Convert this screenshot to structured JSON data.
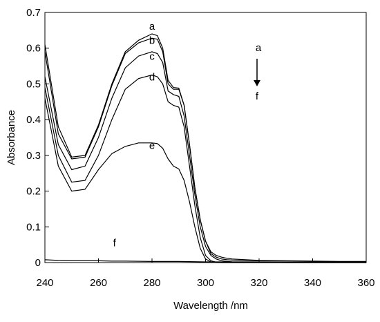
{
  "chart_data": {
    "type": "line",
    "title": "",
    "xlabel": "Wavelength /nm",
    "ylabel": "Absorbance",
    "xlim": [
      240,
      360
    ],
    "ylim": [
      0,
      0.7
    ],
    "xticks": [
      "240",
      "260",
      "280",
      "300",
      "320",
      "340",
      "360"
    ],
    "yticks": [
      "0",
      "0.1",
      "0.2",
      "0.3",
      "0.4",
      "0.5",
      "0.6",
      "0.7"
    ],
    "grid": false,
    "legend": "none",
    "annotation": {
      "from": "a",
      "to": "f"
    },
    "series": [
      {
        "name": "a",
        "x": [
          240,
          245,
          250,
          255,
          260,
          265,
          270,
          275,
          280,
          282,
          284,
          286,
          288,
          290,
          292,
          294,
          296,
          298,
          300,
          302,
          304,
          306,
          308,
          310,
          315,
          320,
          330,
          340,
          350,
          360
        ],
        "y": [
          0.61,
          0.38,
          0.295,
          0.3,
          0.385,
          0.5,
          0.59,
          0.622,
          0.64,
          0.635,
          0.6,
          0.51,
          0.49,
          0.488,
          0.44,
          0.33,
          0.21,
          0.12,
          0.06,
          0.03,
          0.02,
          0.015,
          0.012,
          0.01,
          0.008,
          0.006,
          0.005,
          0.004,
          0.003,
          0.003
        ]
      },
      {
        "name": "b",
        "x": [
          240,
          245,
          250,
          255,
          260,
          265,
          270,
          275,
          280,
          282,
          284,
          286,
          288,
          290,
          292,
          294,
          296,
          298,
          300,
          302,
          304,
          306,
          308,
          310,
          315,
          320,
          330,
          340,
          350,
          360
        ],
        "y": [
          0.59,
          0.36,
          0.29,
          0.295,
          0.38,
          0.495,
          0.585,
          0.615,
          0.628,
          0.625,
          0.59,
          0.5,
          0.485,
          0.485,
          0.44,
          0.33,
          0.21,
          0.12,
          0.06,
          0.025,
          0.015,
          0.01,
          0.008,
          0.007,
          0.006,
          0.005,
          0.004,
          0.003,
          0.002,
          0.002
        ]
      },
      {
        "name": "c",
        "x": [
          240,
          245,
          250,
          255,
          260,
          265,
          270,
          275,
          280,
          282,
          284,
          286,
          288,
          290,
          292,
          294,
          296,
          298,
          300,
          302,
          304,
          306,
          308,
          310,
          315,
          320,
          330,
          340,
          350,
          360
        ],
        "y": [
          0.52,
          0.33,
          0.26,
          0.27,
          0.35,
          0.46,
          0.545,
          0.578,
          0.59,
          0.585,
          0.56,
          0.48,
          0.47,
          0.465,
          0.41,
          0.3,
          0.19,
          0.1,
          0.045,
          0.02,
          0.01,
          0.005,
          0.003,
          0.002,
          0.001,
          0.001,
          0,
          0,
          0,
          0
        ]
      },
      {
        "name": "d",
        "x": [
          240,
          245,
          250,
          255,
          260,
          265,
          270,
          275,
          280,
          282,
          284,
          286,
          288,
          290,
          292,
          294,
          296,
          298,
          300,
          302,
          304,
          306,
          308,
          310,
          315,
          320,
          330,
          340,
          350,
          360
        ],
        "y": [
          0.49,
          0.3,
          0.225,
          0.23,
          0.3,
          0.4,
          0.485,
          0.515,
          0.525,
          0.52,
          0.5,
          0.45,
          0.44,
          0.435,
          0.38,
          0.27,
          0.16,
          0.07,
          0.02,
          0.005,
          0.001,
          0,
          0,
          0,
          0,
          0,
          0,
          0,
          0,
          0
        ]
      },
      {
        "name": "e",
        "x": [
          240,
          245,
          250,
          255,
          260,
          265,
          270,
          275,
          280,
          282,
          284,
          286,
          288,
          290,
          292,
          294,
          296,
          298,
          300,
          302,
          304,
          306,
          308,
          310,
          315,
          320,
          330,
          340,
          350,
          360
        ],
        "y": [
          0.46,
          0.27,
          0.2,
          0.205,
          0.26,
          0.305,
          0.325,
          0.335,
          0.335,
          0.333,
          0.32,
          0.29,
          0.27,
          0.262,
          0.23,
          0.17,
          0.1,
          0.04,
          0.01,
          0.002,
          0,
          0,
          0,
          0,
          0,
          0,
          0,
          0,
          0,
          0
        ]
      },
      {
        "name": "f",
        "x": [
          240,
          245,
          250,
          255,
          260,
          265,
          270,
          280,
          290,
          300,
          310,
          320,
          330,
          340,
          350,
          360
        ],
        "y": [
          0.008,
          0.006,
          0.005,
          0.005,
          0.005,
          0.004,
          0.004,
          0.003,
          0.003,
          0.002,
          0.002,
          0.002,
          0.001,
          0.001,
          0.001,
          0.001
        ]
      }
    ]
  }
}
